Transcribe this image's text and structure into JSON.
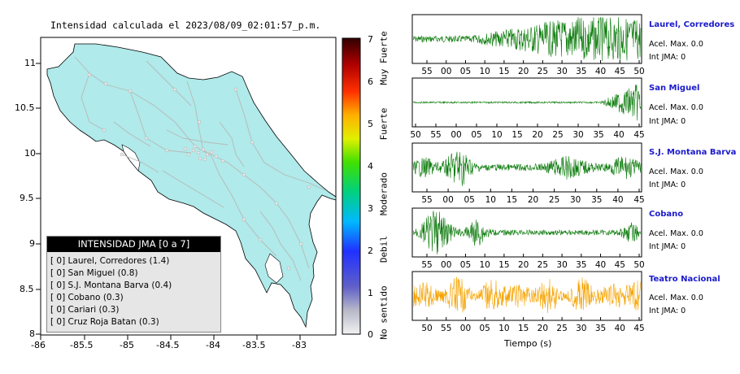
{
  "map": {
    "title": "Intensidad calculada el 2023/08/09_02:01:57_p.m.",
    "x_ticks": [
      "-86",
      "-85.5",
      "-85",
      "-84.5",
      "-84",
      "-83.5",
      "-83"
    ],
    "y_ticks": [
      "11",
      "10.5",
      "10",
      "9.5",
      "9",
      "8.5",
      "8"
    ],
    "land_color": "#b0eaea",
    "road_color": "#b8b8b8"
  },
  "colorbar": {
    "ticks": [
      "7",
      "6",
      "5",
      "4",
      "3",
      "2",
      "1",
      "0"
    ],
    "categories": [
      "Muy Fuerte",
      "Fuerte",
      "Moderado",
      "Debil",
      "No sentido"
    ]
  },
  "legend": {
    "title": "INTENSIDAD JMA [0 a 7]",
    "items": [
      "[ 0] Laurel, Corredores (1.4)",
      "[ 0] San Miguel (0.8)",
      "[ 0] S.J. Montana Barva (0.4)",
      "[ 0] Cobano (0.3)",
      "[ 0] Cariari (0.3)",
      "[ 0] Cruz Roja Batan (0.3)"
    ]
  },
  "stations": [
    {
      "name": "Laurel, Corredores",
      "acel": "Acel. Max. 0.0",
      "int": "Int JMA: 0",
      "ticks": [
        "55",
        "00",
        "05",
        "10",
        "15",
        "20",
        "25",
        "30",
        "35",
        "40",
        "45",
        "50"
      ],
      "color": "#0a7a0a"
    },
    {
      "name": "San Miguel",
      "acel": "Acel. Max. 0.0",
      "int": "Int JMA: 0",
      "ticks": [
        "50",
        "55",
        "00",
        "05",
        "10",
        "15",
        "20",
        "25",
        "30",
        "35",
        "40",
        "45"
      ],
      "color": "#0a7a0a"
    },
    {
      "name": "S.J. Montana Barva",
      "acel": "Acel. Max. 0.0",
      "int": "Int JMA: 0",
      "ticks": [
        "55",
        "00",
        "05",
        "10",
        "15",
        "20",
        "25",
        "30",
        "35",
        "40",
        "45"
      ],
      "color": "#0a7a0a"
    },
    {
      "name": "Cobano",
      "acel": "Acel. Max. 0.0",
      "int": "Int JMA: 0",
      "ticks": [
        "55",
        "00",
        "05",
        "10",
        "15",
        "20",
        "25",
        "30",
        "35",
        "40",
        "45",
        "50"
      ],
      "color": "#0a7a0a"
    },
    {
      "name": "Teatro Nacional",
      "acel": "Acel. Max. 0.0",
      "int": "Int JMA: 0",
      "ticks": [
        "50",
        "55",
        "00",
        "05",
        "10",
        "15",
        "20",
        "25",
        "30",
        "35",
        "40",
        "45"
      ],
      "color": "#f5a300"
    }
  ],
  "time_label": "Tiempo (s)",
  "chart_data": [
    {
      "type": "heatmap",
      "title": "Intensidad calculada el 2023/08/09_02:01:57_p.m.",
      "xlabel": "",
      "ylabel": "",
      "xlim": [
        -86,
        -82.6
      ],
      "ylim": [
        8,
        11.3
      ],
      "colorbar_range": [
        0,
        7
      ],
      "stations_intensity": [
        {
          "name": "Laurel, Corredores",
          "value": 1.4
        },
        {
          "name": "San Miguel",
          "value": 0.8
        },
        {
          "name": "S.J. Montana Barva",
          "value": 0.4
        },
        {
          "name": "Cobano",
          "value": 0.3
        },
        {
          "name": "Cariari",
          "value": 0.3
        },
        {
          "name": "Cruz Roja Batan",
          "value": 0.3
        }
      ]
    },
    {
      "type": "line",
      "series": [
        {
          "name": "Laurel, Corredores",
          "acel_max": 0.0,
          "int_jma": 0
        },
        {
          "name": "San Miguel",
          "acel_max": 0.0,
          "int_jma": 0
        },
        {
          "name": "S.J. Montana Barva",
          "acel_max": 0.0,
          "int_jma": 0
        },
        {
          "name": "Cobano",
          "acel_max": 0.0,
          "int_jma": 0
        },
        {
          "name": "Teatro Nacional",
          "acel_max": 0.0,
          "int_jma": 0
        }
      ],
      "xlabel": "Tiempo (s)"
    }
  ]
}
